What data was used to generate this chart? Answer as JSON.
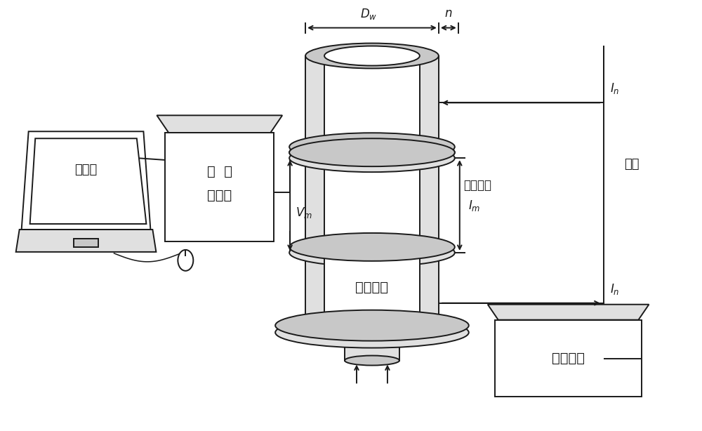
{
  "bg_color": "#ffffff",
  "line_color": "#1a1a1a",
  "gray_light": "#e0e0e0",
  "gray_mid": "#c8c8c8",
  "gray_dark": "#a0a0a0",
  "labels": {
    "computer": "计算机",
    "data_collector": "数  据\n采集仪",
    "annulus": "环空井筒",
    "monitor_ring": "监测铜环",
    "power_supply": "恒流电源",
    "wire": "导线",
    "Dw": "$D_w$",
    "n": "$n$",
    "Vm": "$V_m$",
    "Im": "$I_m$",
    "In_top": "$I_n$",
    "In_bottom": "$I_n$"
  },
  "figsize": [
    10.0,
    6.14
  ],
  "dpi": 100
}
